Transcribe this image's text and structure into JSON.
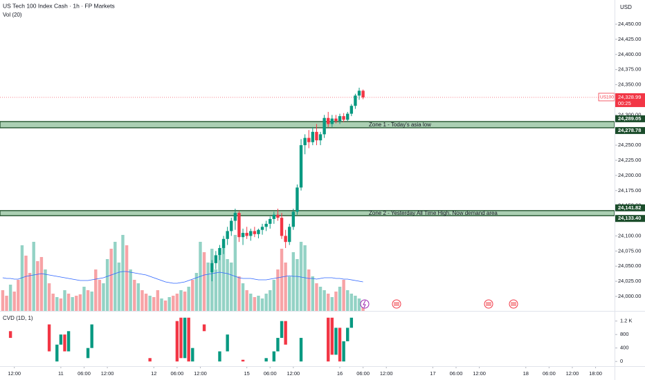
{
  "chart_data": {
    "type": "candlestick",
    "title": "US Tech 100 Index Cash · 1h · FP Markets",
    "currency": "USD",
    "up_color": "#089981",
    "down_color": "#f23645",
    "xlim": [
      -0.7,
      157.9
    ],
    "xticks": [
      {
        "value": 3,
        "label": "12:00"
      },
      {
        "value": 15,
        "label": "11"
      },
      {
        "value": 21,
        "label": "06:00"
      },
      {
        "value": 27,
        "label": "12:00"
      },
      {
        "value": 39,
        "label": "12"
      },
      {
        "value": 45,
        "label": "06:00"
      },
      {
        "value": 51,
        "label": "12:00"
      },
      {
        "value": 63,
        "label": "15"
      },
      {
        "value": 69,
        "label": "06:00"
      },
      {
        "value": 75,
        "label": "12:00"
      },
      {
        "value": 87,
        "label": "16"
      },
      {
        "value": 93,
        "label": "06:00"
      },
      {
        "value": 99,
        "label": "12:00"
      },
      {
        "value": 111,
        "label": "17"
      },
      {
        "value": 117,
        "label": "06:00"
      },
      {
        "value": 123,
        "label": "12:00"
      },
      {
        "value": 135,
        "label": "18"
      },
      {
        "value": 141,
        "label": "06:00"
      },
      {
        "value": 147,
        "label": "12:00"
      },
      {
        "value": 153,
        "label": "18:00"
      }
    ],
    "ylim": [
      23976,
      24490
    ],
    "yticks": [
      {
        "value": 24450,
        "label": "24,450.00"
      },
      {
        "value": 24425,
        "label": "24,425.00"
      },
      {
        "value": 24400,
        "label": "24,400.00"
      },
      {
        "value": 24375,
        "label": "24,375.00"
      },
      {
        "value": 24350,
        "label": "24,350.00"
      },
      {
        "value": 24300,
        "label": "24,300.00"
      },
      {
        "value": 24250,
        "label": "24,250.00"
      },
      {
        "value": 24225,
        "label": "24,225.00"
      },
      {
        "value": 24200,
        "label": "24,200.00"
      },
      {
        "value": 24175,
        "label": "24,175.00"
      },
      {
        "value": 24150,
        "label": "24,150.00"
      },
      {
        "value": 24100,
        "label": "24,100.00"
      },
      {
        "value": 24075,
        "label": "24,075.00"
      },
      {
        "value": 24050,
        "label": "24,050.00"
      },
      {
        "value": 24025,
        "label": "24,025.00"
      },
      {
        "value": 24000,
        "label": "24,000.00"
      }
    ],
    "candles": {
      "x": [
        54,
        55,
        56,
        57,
        58,
        59,
        60,
        61,
        62,
        63,
        64,
        65,
        66,
        67,
        68,
        69,
        70,
        71,
        72,
        73,
        74,
        75,
        76,
        77,
        78,
        79,
        80,
        81,
        82,
        83,
        84,
        85,
        86,
        87,
        88,
        89,
        90,
        91,
        92,
        93
      ],
      "open": [
        24040,
        24055,
        24068,
        24080,
        24095,
        24108,
        24125,
        24138,
        24098,
        24105,
        24100,
        24108,
        24103,
        24110,
        24115,
        24120,
        24128,
        24135,
        24130,
        24100,
        24090,
        24115,
        24140,
        24180,
        24250,
        24262,
        24255,
        24272,
        24258,
        24268,
        24295,
        24285,
        24294,
        24290,
        24298,
        24292,
        24302,
        24315,
        24332,
        24340
      ],
      "high": [
        24060,
        24075,
        24085,
        24100,
        24115,
        24130,
        24145,
        24142,
        24112,
        24115,
        24112,
        24115,
        24112,
        24120,
        24125,
        24132,
        24140,
        24145,
        24138,
        24110,
        24120,
        24145,
        24185,
        24260,
        24268,
        24275,
        24280,
        24285,
        24272,
        24300,
        24305,
        24300,
        24300,
        24302,
        24303,
        24305,
        24318,
        24335,
        24345,
        24342
      ],
      "low": [
        24025,
        24045,
        24060,
        24070,
        24085,
        24100,
        24110,
        24090,
        24085,
        24095,
        24092,
        24098,
        24096,
        24102,
        24108,
        24112,
        24120,
        24125,
        24095,
        24080,
        24085,
        24110,
        24135,
        24175,
        24235,
        24245,
        24250,
        24250,
        24250,
        24262,
        24280,
        24280,
        24286,
        24285,
        24288,
        24290,
        24298,
        24310,
        24325,
        24326
      ],
      "close": [
        24055,
        24068,
        24080,
        24095,
        24108,
        24125,
        24138,
        24098,
        24105,
        24100,
        24108,
        24103,
        24110,
        24115,
        24120,
        24128,
        24135,
        24130,
        24100,
        24090,
        24115,
        24140,
        24180,
        24250,
        24262,
        24255,
        24272,
        24258,
        24268,
        24295,
        24285,
        24294,
        24290,
        24298,
        24292,
        24302,
        24315,
        24332,
        24340,
        24328.99
      ]
    },
    "last_price": {
      "value": 24328.99,
      "label": "24,328.99"
    },
    "symbol": "US100",
    "countdown": "00:25",
    "zones": [
      {
        "name": "Zone 1 - Today's asia low",
        "top": {
          "value": 24289.05,
          "label": "24,289.05"
        },
        "bottom": {
          "value": 24278.78,
          "label": "24,278.78"
        }
      },
      {
        "name": "Zone 2 - Yesterday All Time High. Now demand area",
        "top": {
          "value": 24141.82,
          "label": "24,141.82"
        },
        "bottom": {
          "value": 24133.4,
          "label": "24,133.40"
        }
      }
    ],
    "volume": {
      "label": "Vol (20)",
      "ylim": [
        0,
        150
      ],
      "up_color": "#93d2c5",
      "down_color": "#f7a3a6",
      "ma_color": "#2962ff",
      "values": [
        30,
        22,
        38,
        28,
        45,
        95,
        80,
        55,
        100,
        72,
        78,
        60,
        40,
        25,
        20,
        18,
        30,
        25,
        20,
        22,
        24,
        35,
        30,
        28,
        60,
        45,
        40,
        75,
        90,
        100,
        70,
        110,
        95,
        60,
        45,
        40,
        30,
        25,
        22,
        20,
        30,
        18,
        15,
        20,
        22,
        25,
        30,
        28,
        35,
        45,
        55,
        100,
        85,
        70,
        90,
        60,
        80,
        95,
        75,
        70,
        110,
        50,
        40,
        30,
        25,
        20,
        22,
        18,
        25,
        30,
        45,
        60,
        90,
        70,
        50,
        85,
        75,
        100,
        95,
        60,
        50,
        40,
        35,
        30,
        25,
        20,
        28,
        35,
        45,
        30,
        25,
        22,
        18,
        15
      ],
      "up": [
        false,
        false,
        true,
        false,
        false,
        true,
        false,
        false,
        true,
        false,
        false,
        true,
        false,
        false,
        true,
        false,
        true,
        false,
        true,
        false,
        false,
        true,
        false,
        true,
        false,
        false,
        true,
        true,
        false,
        true,
        true,
        true,
        false,
        true,
        false,
        true,
        false,
        false,
        true,
        false,
        false,
        true,
        false,
        true,
        false,
        false,
        true,
        false,
        true,
        false,
        true,
        true,
        false,
        true,
        true,
        true,
        true,
        true,
        true,
        true,
        true,
        false,
        true,
        false,
        true,
        false,
        true,
        true,
        true,
        true,
        true,
        false,
        false,
        false,
        true,
        true,
        true,
        true,
        true,
        false,
        true,
        false,
        true,
        true,
        false,
        true,
        false,
        true,
        false,
        true,
        true,
        true,
        true,
        false
      ],
      "ma": [
        48,
        47,
        47,
        46,
        46,
        48,
        50,
        51,
        52,
        53,
        54,
        53,
        52,
        51,
        50,
        49,
        48,
        47,
        46,
        45,
        44,
        44,
        44,
        45,
        46,
        47,
        48,
        50,
        52,
        54,
        56,
        57,
        57,
        56,
        55,
        54,
        53,
        52,
        50,
        48,
        46,
        44,
        42,
        41,
        40,
        40,
        41,
        42,
        44,
        46,
        48,
        50,
        52,
        53,
        54,
        55,
        56,
        55,
        54,
        52,
        50,
        48,
        47,
        47,
        47,
        46,
        45,
        45,
        45,
        46,
        47,
        48,
        49,
        50,
        51,
        50,
        50,
        49,
        48,
        47,
        47,
        46,
        47,
        48,
        48,
        48,
        47,
        47,
        46,
        46,
        45,
        44,
        43,
        42
      ]
    },
    "cvd": {
      "label": "CVD (1D, 1)",
      "ylim": [
        -140,
        1460
      ],
      "yticks": [
        {
          "value": 1200,
          "label": "1.2 K"
        },
        800,
        400,
        0
      ],
      "x": [
        2,
        12,
        14,
        15,
        16,
        17,
        22,
        23,
        38,
        45,
        46,
        47,
        48,
        49,
        52,
        56,
        58,
        62,
        68,
        70,
        71,
        72,
        73,
        77,
        84,
        85,
        86,
        87,
        88,
        89,
        90
      ],
      "open": [
        900,
        1100,
        0,
        500,
        800,
        300,
        100,
        400,
        100,
        1200,
        1300,
        100,
        1300,
        0,
        1100,
        0,
        300,
        50,
        0,
        0,
        300,
        700,
        1200,
        0,
        1300,
        1300,
        200,
        1000,
        0,
        600,
        1000
      ],
      "close": [
        700,
        300,
        500,
        800,
        300,
        900,
        400,
        1100,
        0,
        0,
        100,
        1300,
        0,
        400,
        900,
        300,
        800,
        0,
        100,
        300,
        700,
        1200,
        500,
        700,
        0,
        200,
        1000,
        0,
        600,
        1000,
        1300
      ]
    }
  }
}
